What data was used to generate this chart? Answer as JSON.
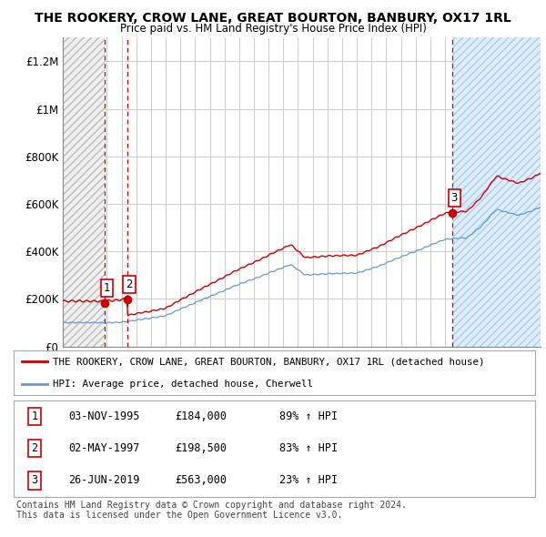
{
  "title": "THE ROOKERY, CROW LANE, GREAT BOURTON, BANBURY, OX17 1RL",
  "subtitle": "Price paid vs. HM Land Registry's House Price Index (HPI)",
  "ylabel_ticks": [
    "£0",
    "£200K",
    "£400K",
    "£600K",
    "£800K",
    "£1M",
    "£1.2M"
  ],
  "ytick_values": [
    0,
    200000,
    400000,
    600000,
    800000,
    1000000,
    1200000
  ],
  "ylim": [
    0,
    1300000
  ],
  "xlim_start": 1993.0,
  "xlim_end": 2025.5,
  "hatch_left_end": 1995.84,
  "hatch_right_start": 2019.48,
  "sale_dates": [
    1995.84,
    1997.37,
    2019.48
  ],
  "sale_prices": [
    184000,
    198500,
    563000
  ],
  "sale_labels": [
    "1",
    "2",
    "3"
  ],
  "legend_line1": "THE ROOKERY, CROW LANE, GREAT BOURTON, BANBURY, OX17 1RL (detached house)",
  "legend_line2": "HPI: Average price, detached house, Cherwell",
  "table_rows": [
    [
      "1",
      "03-NOV-1995",
      "£184,000",
      "89% ↑ HPI"
    ],
    [
      "2",
      "02-MAY-1997",
      "£198,500",
      "83% ↑ HPI"
    ],
    [
      "3",
      "26-JUN-2019",
      "£563,000",
      "23% ↑ HPI"
    ]
  ],
  "footer": "Contains HM Land Registry data © Crown copyright and database right 2024.\nThis data is licensed under the Open Government Licence v3.0.",
  "property_line_color": "#cc0000",
  "hpi_line_color": "#6699cc",
  "hatch_left_color": "#dddddd",
  "hatch_right_color": "#ddeeff",
  "grid_color": "#cccccc",
  "bg_color": "#ffffff"
}
